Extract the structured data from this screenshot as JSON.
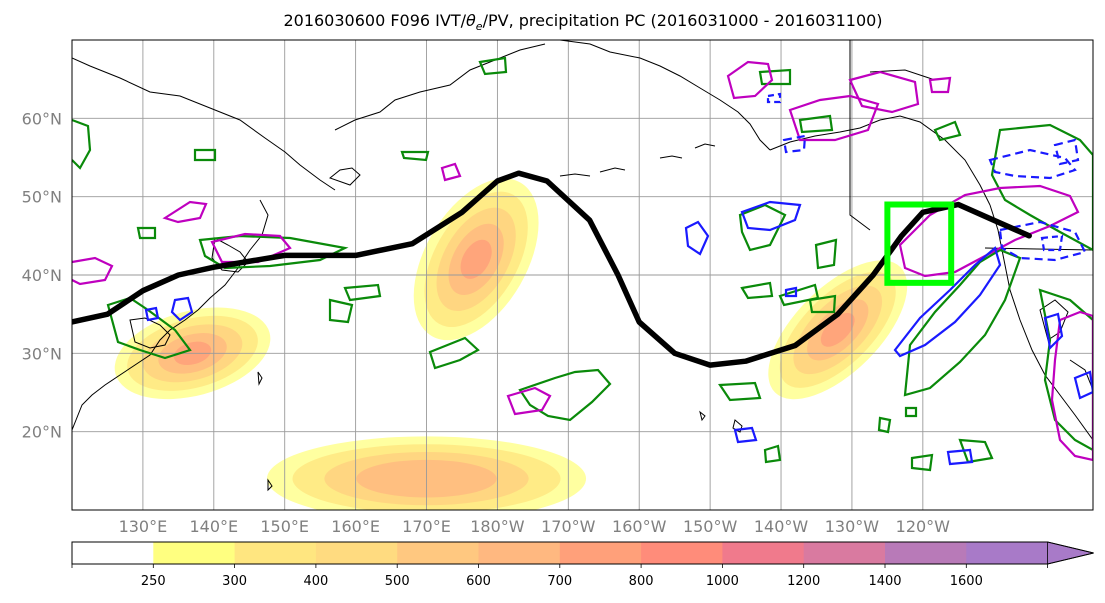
{
  "chart_data": {
    "type": "heatmap",
    "title": "2016030600 F096 IVT/θe/PV, precipitation PC (2016031000 - 2016031100)",
    "title_parts": {
      "prefix": "2016030600 F096 IVT/",
      "theta_symbol": "θ",
      "theta_sub": "e",
      "suffix": "/PV, precipitation PC (2016031000 - 2016031100)"
    },
    "map": {
      "lon_range": [
        120,
        264
      ],
      "lat_range": [
        10,
        70
      ],
      "grid": true
    },
    "lat_ticks": [
      {
        "value": 20,
        "label": "20°N"
      },
      {
        "value": 30,
        "label": "30°N"
      },
      {
        "value": 40,
        "label": "40°N"
      },
      {
        "value": 50,
        "label": "50°N"
      },
      {
        "value": 60,
        "label": "60°N"
      }
    ],
    "lon_ticks": [
      {
        "value": 130,
        "label": "130°E"
      },
      {
        "value": 140,
        "label": "140°E"
      },
      {
        "value": 150,
        "label": "150°E"
      },
      {
        "value": 160,
        "label": "160°E"
      },
      {
        "value": 170,
        "label": "170°E"
      },
      {
        "value": 180,
        "label": "180°W"
      },
      {
        "value": 190,
        "label": "170°W"
      },
      {
        "value": 200,
        "label": "160°W"
      },
      {
        "value": 210,
        "label": "150°W"
      },
      {
        "value": 220,
        "label": "140°W"
      },
      {
        "value": 230,
        "label": "130°W"
      },
      {
        "value": 240,
        "label": "120°W"
      }
    ],
    "colorbar": {
      "levels": [
        0,
        250,
        300,
        400,
        500,
        600,
        700,
        800,
        1000,
        1200,
        1400,
        1600,
        1800
      ],
      "labels": [
        "250",
        "300",
        "400",
        "500",
        "600",
        "700",
        "800",
        "1000",
        "1200",
        "1400",
        "1600"
      ],
      "colors": [
        "#ffffff",
        "#ffff80",
        "#ffe680",
        "#ffdb80",
        "#ffc880",
        "#ffb880",
        "#ffa07a",
        "#ff8c7a",
        "#f07a8c",
        "#d97aa0",
        "#b87ab8",
        "#a87ac8"
      ],
      "extend": "max"
    },
    "ivt_plumes": [
      {
        "name": "plume-japan",
        "lon": 137,
        "lat": 30,
        "rx": 9,
        "ry": 2.5,
        "angle": -15,
        "peak": 700
      },
      {
        "name": "plume-dateline",
        "lon": 177,
        "lat": 42,
        "rx": 10,
        "ry": 3,
        "angle": -60,
        "peak": 650
      },
      {
        "name": "plume-subtropics",
        "lon": 170,
        "lat": 14,
        "rx": 18,
        "ry": 2.5,
        "angle": 0,
        "peak": 500
      },
      {
        "name": "plume-west-coast",
        "lon": 228,
        "lat": 33,
        "rx": 10,
        "ry": 2.5,
        "angle": -45,
        "peak": 800
      }
    ],
    "theta_e_contour": {
      "color": "#000000",
      "points": [
        [
          120,
          34
        ],
        [
          125,
          35
        ],
        [
          130,
          38
        ],
        [
          135,
          40
        ],
        [
          140,
          41
        ],
        [
          150,
          42.5
        ],
        [
          160,
          42.5
        ],
        [
          168,
          44
        ],
        [
          175,
          48
        ],
        [
          180,
          52
        ],
        [
          183,
          53
        ],
        [
          187,
          52
        ],
        [
          193,
          47
        ],
        [
          197,
          40
        ],
        [
          200,
          34
        ],
        [
          205,
          30
        ],
        [
          210,
          28.5
        ],
        [
          215,
          29
        ],
        [
          222,
          31
        ],
        [
          228,
          35
        ],
        [
          233,
          40
        ],
        [
          237,
          45
        ],
        [
          240,
          48
        ],
        [
          245,
          49
        ],
        [
          250,
          47
        ],
        [
          255,
          45
        ]
      ]
    },
    "precip_box": {
      "color": "#00ff00",
      "lon_range": [
        235,
        244
      ],
      "lat_range": [
        39,
        49
      ]
    }
  }
}
